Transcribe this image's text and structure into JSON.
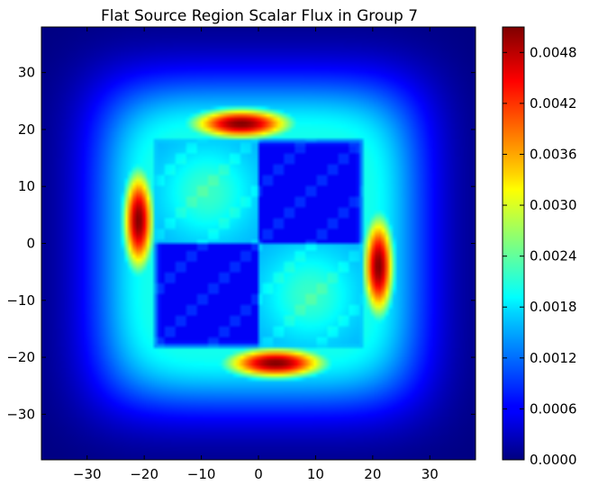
{
  "chart_data": {
    "type": "heatmap",
    "title": "Flat Source Region Scalar Flux in Group 7",
    "xlabel": "",
    "ylabel": "",
    "xlim": [
      -38.0,
      38.0
    ],
    "ylim": [
      -38.0,
      38.0
    ],
    "x_ticks": [
      -30,
      -20,
      -10,
      0,
      10,
      20,
      30
    ],
    "y_ticks": [
      30,
      20,
      10,
      0,
      -10,
      -20,
      -30
    ],
    "x_tick_labels": [
      "−30",
      "−20",
      "−10",
      "0",
      "10",
      "20",
      "30"
    ],
    "y_tick_labels": [
      "30",
      "20",
      "10",
      "0",
      "−10",
      "−20",
      "−30"
    ],
    "colormap": "jet",
    "grid": false,
    "colorbar": {
      "vmin": 0.0,
      "vmax": 0.0051,
      "ticks": [
        0.0048,
        0.0042,
        0.0036,
        0.003,
        0.0024,
        0.0018,
        0.0012,
        0.0006,
        0.0
      ],
      "tick_labels": [
        "0.0048",
        "0.0042",
        "0.0036",
        "0.0030",
        "0.0024",
        "0.0018",
        "0.0012",
        "0.0006",
        "0.0000"
      ]
    },
    "regions": {
      "fuel_quadrants": [
        {
          "x": [
            -18,
            0
          ],
          "y": [
            0,
            18
          ],
          "flux_range": [
            0.0014,
            0.0022
          ]
        },
        {
          "x": [
            0,
            18
          ],
          "y": [
            0,
            18
          ],
          "flux_range": [
            0.0004,
            0.001
          ]
        },
        {
          "x": [
            -18,
            0
          ],
          "y": [
            -18,
            0
          ],
          "flux_range": [
            0.0004,
            0.001
          ]
        },
        {
          "x": [
            0,
            18
          ],
          "y": [
            -18,
            0
          ],
          "flux_range": [
            0.0014,
            0.0026
          ]
        }
      ],
      "peaks": [
        {
          "x": -3,
          "y": 21,
          "value": 0.0051
        },
        {
          "x": 3,
          "y": -21,
          "value": 0.0051
        },
        {
          "x": -21,
          "y": 4,
          "value": 0.0051
        },
        {
          "x": 21,
          "y": -4,
          "value": 0.0051
        }
      ],
      "corner_value": 0.0
    }
  }
}
